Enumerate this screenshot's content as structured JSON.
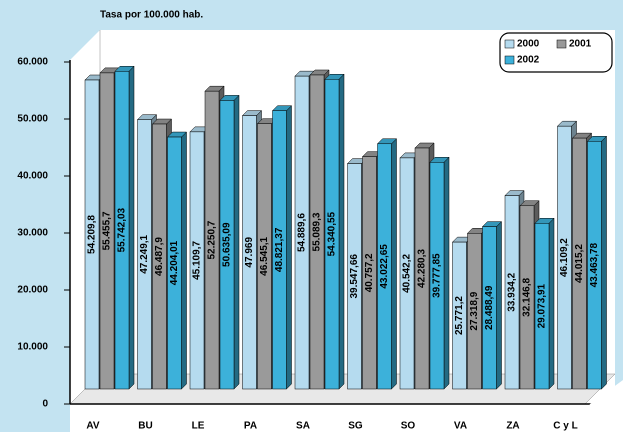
{
  "chart_data": {
    "type": "bar3d",
    "title": "Tasa por 100.000 hab.",
    "categories": [
      "AV",
      "BU",
      "LE",
      "PA",
      "SA",
      "SG",
      "SO",
      "VA",
      "ZA",
      "C y L"
    ],
    "series": [
      {
        "name": "2000",
        "color": "#b5dbef",
        "values": [
          54209.8,
          47249.1,
          45109.7,
          47969,
          54889.6,
          39547.66,
          40542.2,
          25771.2,
          33934.2,
          46109.2
        ],
        "value_labels": [
          "54.209,8",
          "47.249,1",
          "45.109,7",
          "47.969",
          "54.889,6",
          "39.547,66",
          "40.542,2",
          "25.771,2",
          "33.934,2",
          "46.109,2"
        ]
      },
      {
        "name": "2001",
        "color": "#9a9a9a",
        "values": [
          55455.7,
          46487.9,
          52250.7,
          46545.1,
          55089.3,
          40757.2,
          42280.3,
          27318.9,
          32146.8,
          44015.2
        ],
        "value_labels": [
          "55.455,7",
          "46.487,9",
          "52.250,7",
          "46.545,1",
          "55.089,3",
          "40.757,2",
          "42.280,3",
          "27.318,9",
          "32.146,8",
          "44.015,2"
        ]
      },
      {
        "name": "2002",
        "color": "#3cb1da",
        "values": [
          55742.03,
          44204.01,
          50635.09,
          48821.37,
          54340.55,
          43022.65,
          39777.85,
          28488.49,
          29073.91,
          43463.78
        ],
        "value_labels": [
          "55.742,03",
          "44.204,01",
          "50.635,09",
          "48.821,37",
          "54.340,55",
          "43.022,65",
          "39.777,85",
          "28.488,49",
          "29.073,91",
          "43.463,78"
        ]
      }
    ],
    "ylim": [
      0,
      60000
    ],
    "yticks": [
      {
        "value": 0,
        "label": "0"
      },
      {
        "value": 10000,
        "label": "10.000"
      },
      {
        "value": 20000,
        "label": "20.000"
      },
      {
        "value": 30000,
        "label": "30.000"
      },
      {
        "value": 40000,
        "label": "40.000"
      },
      {
        "value": 50000,
        "label": "50.000"
      },
      {
        "value": 60000,
        "label": "60.000"
      }
    ],
    "grid": false,
    "legend": "top-right"
  }
}
